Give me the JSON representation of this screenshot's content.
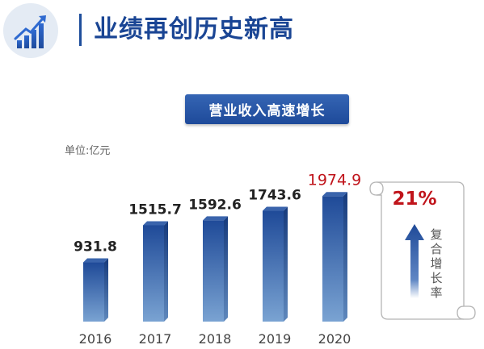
{
  "header": {
    "title": "业绩再创历史新高",
    "logo_icon": "bar-chart-growth-icon"
  },
  "chart_data": {
    "type": "bar",
    "title": "营业收入高速增长",
    "unit": "单位:亿元",
    "categories": [
      "2016",
      "2017",
      "2018",
      "2019",
      "2020"
    ],
    "values": [
      931.8,
      1515.7,
      1592.6,
      1743.6,
      1974.9
    ],
    "value_labels": [
      "931.8",
      "1515.7",
      "1592.6",
      "1743.6",
      "1974.9"
    ],
    "highlight_index": 4,
    "ylim": [
      0,
      2600
    ],
    "grid": false,
    "colors": {
      "bar_top": "#1f4a98",
      "bar_bottom": "#7aa3d2",
      "label": "#222222",
      "highlight_label": "#c0141b"
    }
  },
  "growth_note": {
    "rate": "21%",
    "label": "复合增长率",
    "arrow_icon": "up-arrow-icon"
  }
}
